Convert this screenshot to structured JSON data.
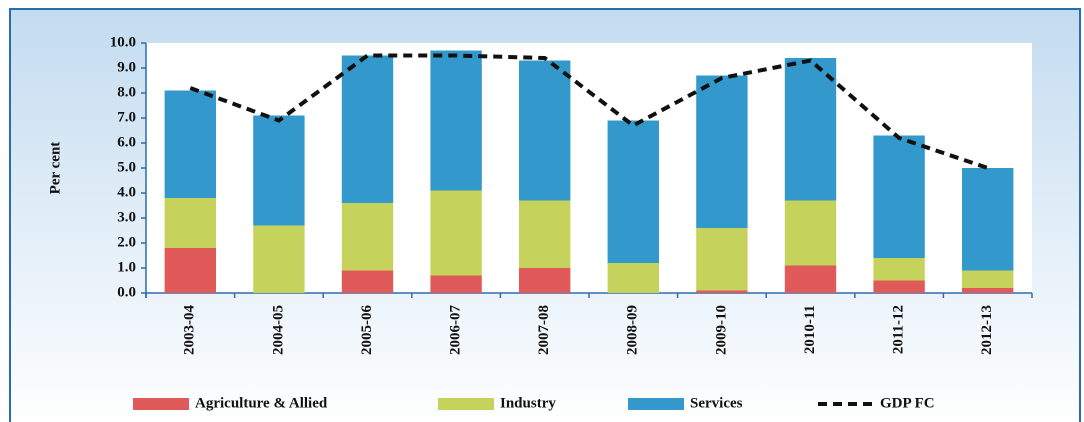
{
  "chart_data": {
    "type": "bar",
    "stacked": true,
    "y_label": "Per cent",
    "categories": [
      "2003-04",
      "2004-05",
      "2005-06",
      "2006-07",
      "2007-08",
      "2008-09",
      "2009-10",
      "2010-11",
      "2011-12",
      "2012-13"
    ],
    "series": [
      {
        "name": "Agriculture & Allied",
        "color": "#e05a5a",
        "values": [
          1.8,
          0.0,
          0.9,
          0.7,
          1.0,
          0.0,
          0.1,
          1.1,
          0.5,
          0.2
        ]
      },
      {
        "name": "Industry",
        "color": "#c5d35c",
        "values": [
          2.0,
          2.7,
          2.7,
          3.4,
          2.7,
          1.2,
          2.5,
          2.6,
          0.9,
          0.7
        ]
      },
      {
        "name": "Services",
        "color": "#3399cc",
        "values": [
          4.3,
          4.4,
          5.9,
          5.6,
          5.6,
          5.7,
          6.1,
          5.7,
          4.9,
          4.1
        ]
      },
      {
        "name": "GDP FC",
        "type": "line",
        "color": "#111111",
        "values": [
          8.2,
          6.9,
          9.5,
          9.5,
          9.4,
          6.7,
          8.6,
          9.3,
          6.2,
          5.0
        ]
      }
    ],
    "ylim": [
      0,
      10
    ],
    "yticks": [
      {
        "value": 0,
        "label": "0.0"
      },
      {
        "value": 1,
        "label": "1.0"
      },
      {
        "value": 2,
        "label": "2.0"
      },
      {
        "value": 3,
        "label": "3.0"
      },
      {
        "value": 4,
        "label": "4.0"
      },
      {
        "value": 5,
        "label": "5.0"
      },
      {
        "value": 6,
        "label": "6.0"
      },
      {
        "value": 7,
        "label": "7.0"
      },
      {
        "value": 8,
        "label": "8.0"
      },
      {
        "value": 9,
        "label": "9.0"
      },
      {
        "value": 10,
        "label": "10.0"
      }
    ],
    "grid": false
  }
}
